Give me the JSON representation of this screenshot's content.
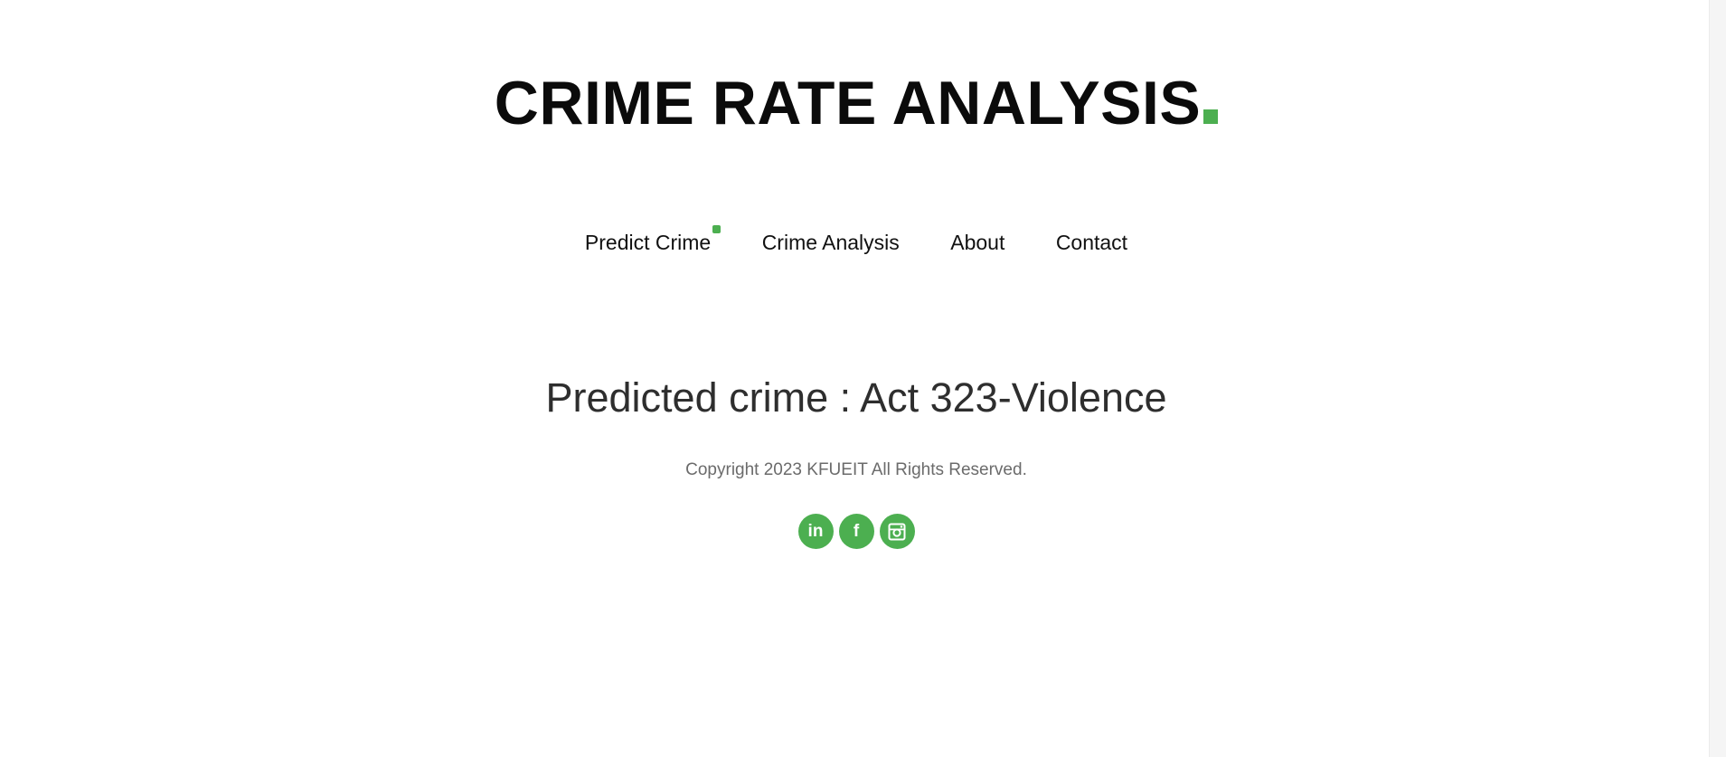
{
  "header": {
    "logo_text": "CRIME RATE ANALYSIS"
  },
  "nav": {
    "items": [
      {
        "label": "Predict Crime"
      },
      {
        "label": "Crime Analysis"
      },
      {
        "label": "About"
      },
      {
        "label": "Contact"
      }
    ]
  },
  "main": {
    "result_text": "Predicted crime : Act 323-Violence"
  },
  "footer": {
    "copyright": "Copyright 2023 KFUEIT All Rights Reserved.",
    "social": [
      {
        "icon": "linkedin-icon",
        "glyph": "in"
      },
      {
        "icon": "facebook-icon",
        "glyph": "f"
      },
      {
        "icon": "instagram-icon"
      }
    ]
  },
  "colors": {
    "accent": "#4caf50",
    "text_dark": "#0b0b0b",
    "text_muted": "#6b6b6b"
  }
}
